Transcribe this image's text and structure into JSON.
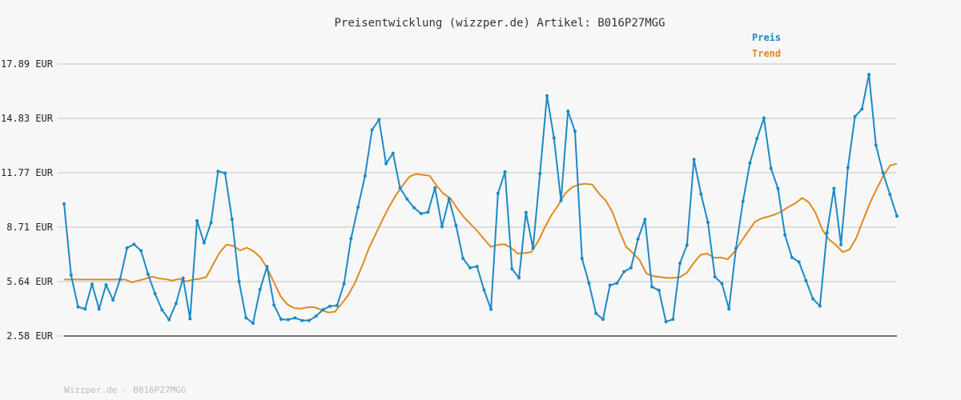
{
  "chart_data": {
    "type": "line",
    "title": "Preisentwicklung (wizzper.de) Artikel: B016P27MGG",
    "yticks": [
      "17.89 EUR",
      "14.83 EUR",
      "11.77 EUR",
      "8.71 EUR",
      "5.64 EUR",
      "2.58 EUR"
    ],
    "ytick_values": [
      17.89,
      14.83,
      11.77,
      8.71,
      5.64,
      2.58
    ],
    "ylim": [
      2.58,
      17.89
    ],
    "grid": true,
    "legend_position": "top-right",
    "colors": {
      "preis": "#1a8ac6",
      "trend": "#e08a1e",
      "grid": "#dddddd",
      "axis": "#555555"
    },
    "series": [
      {
        "name": "Preis",
        "values": [
          10.02,
          6.02,
          4.22,
          4.1,
          5.5,
          4.1,
          5.46,
          4.6,
          5.77,
          7.54,
          7.74,
          7.38,
          6.06,
          4.96,
          4.05,
          3.5,
          4.41,
          5.84,
          3.55,
          9.07,
          7.82,
          8.96,
          11.85,
          11.75,
          9.15,
          5.65,
          3.6,
          3.3,
          5.2,
          6.49,
          4.32,
          3.52,
          3.5,
          3.6,
          3.45,
          3.45,
          3.7,
          4.06,
          4.26,
          4.29,
          5.52,
          8.06,
          9.83,
          11.59,
          14.18,
          14.76,
          12.28,
          12.87,
          10.92,
          10.29,
          9.8,
          9.47,
          9.55,
          10.92,
          8.73,
          10.3,
          8.8,
          6.95,
          6.42,
          6.5,
          5.18,
          4.08,
          10.61,
          11.82,
          6.35,
          5.85,
          9.53,
          7.52,
          11.72,
          16.1,
          13.73,
          10.2,
          15.24,
          14.11,
          6.95,
          5.55,
          3.85,
          3.52,
          5.44,
          5.55,
          6.2,
          6.42,
          8.04,
          9.15,
          5.35,
          5.15,
          3.38,
          3.52,
          6.68,
          7.7,
          12.52,
          10.58,
          8.98,
          5.91,
          5.53,
          4.1,
          7.51,
          10.15,
          12.32,
          13.69,
          14.85,
          12.02,
          10.88,
          8.27,
          7.0,
          6.75,
          5.7,
          4.67,
          4.27,
          8.39,
          10.89,
          7.72,
          12.06,
          14.93,
          15.35,
          17.3,
          13.32,
          11.77,
          10.55,
          9.33
        ]
      },
      {
        "name": "Trend",
        "values": [
          5.76,
          5.76,
          5.76,
          5.76,
          5.76,
          5.76,
          5.76,
          5.76,
          5.76,
          5.76,
          5.6,
          5.7,
          5.8,
          5.92,
          5.82,
          5.78,
          5.7,
          5.8,
          5.65,
          5.75,
          5.8,
          5.9,
          6.6,
          7.3,
          7.72,
          7.65,
          7.4,
          7.55,
          7.35,
          7.0,
          6.4,
          5.6,
          4.8,
          4.35,
          4.15,
          4.12,
          4.2,
          4.2,
          4.05,
          3.9,
          3.95,
          4.4,
          4.9,
          5.6,
          6.5,
          7.5,
          8.3,
          9.1,
          9.85,
          10.5,
          11.05,
          11.55,
          11.7,
          11.65,
          11.6,
          11.05,
          10.6,
          10.35,
          9.8,
          9.3,
          8.9,
          8.5,
          8.05,
          7.6,
          7.7,
          7.75,
          7.55,
          7.22,
          7.25,
          7.3,
          7.9,
          8.7,
          9.4,
          9.95,
          10.6,
          10.95,
          11.1,
          11.15,
          11.1,
          10.6,
          10.2,
          9.55,
          8.5,
          7.6,
          7.25,
          6.85,
          6.1,
          5.95,
          5.9,
          5.85,
          5.85,
          5.9,
          6.15,
          6.7,
          7.15,
          7.22,
          6.98,
          7.0,
          6.9,
          7.32,
          7.9,
          8.45,
          9.0,
          9.2,
          9.3,
          9.42,
          9.6,
          9.85,
          10.05,
          10.35,
          10.1,
          9.5,
          8.55,
          8.0,
          7.7,
          7.3,
          7.45,
          8.1,
          9.1,
          10.05,
          10.85,
          11.6,
          12.18,
          12.28
        ]
      }
    ]
  },
  "footer_text": "Wizzper.de - B016P27MGG"
}
